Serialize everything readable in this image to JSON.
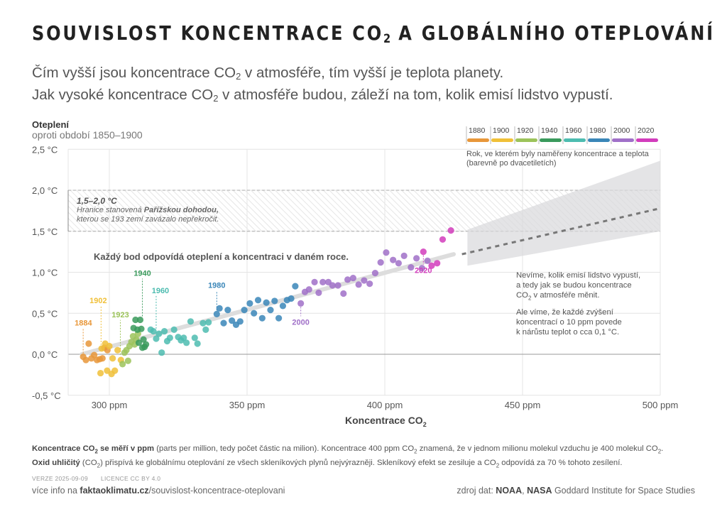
{
  "header": {
    "title_pre": "SOUVISLOST KONCENTRACE CO",
    "title_sub": "2",
    "title_post": " A GLOBÁLNÍHO OTEPLOVÁNÍ",
    "subtitle_line1_pre": "Čím vyšší jsou koncentrace CO",
    "subtitle_line1_sub": "2",
    "subtitle_line1_post": " v atmosféře, tím vyšší je teplota planety.",
    "subtitle_line2_pre": "Jak vysoké koncentrace CO",
    "subtitle_line2_sub": "2",
    "subtitle_line2_post": " v atmosféře budou, záleží na tom, kolik emisí lidstvo vypustí."
  },
  "annotations": {
    "paris_range": "1,5–2,0 °C",
    "paris_line1_pre": "Hranice stanovená ",
    "paris_line1_bold": "Pařížskou dohodou,",
    "paris_line2": "kterou se 193 zemí zavázalo nepřekročit.",
    "point_note": "Každý bod odpovídá oteplení a koncentraci v daném roce.",
    "future_line1": "Nevíme, kolik emisí lidstvo vypustí,",
    "future_line2": "a tedy jak se budou koncentrace",
    "future_line3_pre": "CO",
    "future_line3_sub": "2",
    "future_line3_post": " v atmosféře měnit.",
    "future_line4": "Ale víme, že každé zvýšení",
    "future_line5": "koncentrací o 10 ppm povede",
    "future_line6": "k nárůstu teplot o cca 0,1 °C.",
    "legend_note_line1": "Rok, ve kterém byly naměřeny koncentrace a teplota",
    "legend_note_line2": "(barevně po dvacetiletích)"
  },
  "footer": {
    "note1_bold_pre": "Koncentrace CO",
    "note1_bold_sub": "2",
    "note1_bold_post": " se měří v ppm",
    "note1_rest": " (parts per million, tedy počet částic na milion). Koncentrace 400 ppm CO",
    "note1_sub2": "2",
    "note1_rest2": " znamená, že v jednom milionu molekul vzduchu je 400 molekul CO",
    "note1_sub3": "2",
    "note1_end": ".",
    "note2_bold": "Oxid uhličitý",
    "note2_rest_pre": " (CO",
    "note2_sub": "2",
    "note2_rest": ") přispívá ke globálnímu oteplování ze všech skleníkových plynů nejvýrazněji. Skleníkový efekt se zesiluje a CO",
    "note2_sub2": "2",
    "note2_end": " odpovídá za 70 % tohoto zesílení.",
    "version": "VERZE 2025-09-09",
    "license": "LICENCE CC BY 4.0",
    "more_pre": "více info na ",
    "more_bold": "faktaoklimatu.cz",
    "more_rest": "/souvislost-koncentrace-oteplovani",
    "source_pre": "zdroj dat: ",
    "source_b1": "NOAA",
    "source_mid": ", ",
    "source_b2": "NASA",
    "source_rest": " Goddard Institute for Space Studies"
  },
  "colors": {
    "1880": "#e8973a",
    "1900": "#f0c038",
    "1920": "#9cc35a",
    "1940": "#3a9a5c",
    "1960": "#4dbcb0",
    "1980": "#3a86b8",
    "2000": "#a070c8",
    "2020": "#d23cbc"
  },
  "chart_data": {
    "type": "scatter",
    "title": "Souvislost koncentrace CO2 a globálního oteplování",
    "xlabel_pre": "Koncentrace CO",
    "xlabel_sub": "2",
    "ylabel": "Oteplení",
    "ylabel_sub": "oproti období 1850–1900",
    "xlim": [
      287,
      500
    ],
    "ylim": [
      -0.5,
      2.5
    ],
    "x_ticks": [
      300,
      350,
      400,
      450,
      500
    ],
    "x_tick_labels": [
      "300 ppm",
      "350 ppm",
      "400 ppm",
      "450 ppm",
      "500 ppm"
    ],
    "y_ticks": [
      -0.5,
      0.0,
      0.5,
      1.0,
      1.5,
      2.0,
      2.5
    ],
    "y_tick_labels": [
      "-0,5 °C",
      "0,0 °C",
      "0,5 °C",
      "1,0 °C",
      "1,5 °C",
      "2,0 °C",
      "2,5 °C"
    ],
    "grid": true,
    "legend": {
      "placement": "top-right",
      "entries": [
        "1880",
        "1900",
        "1920",
        "1940",
        "1960",
        "1980",
        "2000",
        "2020"
      ]
    },
    "paris_band": [
      1.5,
      2.0
    ],
    "trend_line": {
      "x": [
        290,
        425
      ],
      "y": [
        0.0,
        1.22
      ]
    },
    "projection_line": {
      "x": [
        428,
        500
      ],
      "y": [
        1.22,
        1.78
      ]
    },
    "projection_band": {
      "x": [
        430,
        500
      ],
      "y_low": [
        1.08,
        1.5
      ],
      "y_high": [
        1.52,
        2.36
      ]
    },
    "labels": [
      {
        "text": "1884",
        "x": 290.5,
        "y": -0.03,
        "decade": "1880"
      },
      {
        "text": "1902",
        "x": 297,
        "y": 0.07,
        "decade": "1900"
      },
      {
        "text": "1923",
        "x": 304,
        "y": -0.05,
        "decade": "1920"
      },
      {
        "text": "1940",
        "x": 312,
        "y": 0.42,
        "decade": "1940"
      },
      {
        "text": "1960",
        "x": 317,
        "y": 0.27,
        "decade": "1960"
      },
      {
        "text": "1980",
        "x": 339,
        "y": 0.49,
        "decade": "1980"
      },
      {
        "text": "2000",
        "x": 369.5,
        "y": 0.62,
        "decade": "2000"
      },
      {
        "text": "2020",
        "x": 414,
        "y": 1.25,
        "decade": "2020"
      }
    ],
    "series": [
      {
        "name": "1880",
        "points": [
          [
            290.5,
            -0.03
          ],
          [
            291.5,
            -0.07
          ],
          [
            292.5,
            0.13
          ],
          [
            293.5,
            -0.05
          ],
          [
            294.5,
            -0.01
          ],
          [
            295.5,
            -0.07
          ],
          [
            296.5,
            -0.06
          ],
          [
            297.5,
            -0.05
          ],
          [
            298.2,
            0.08
          ],
          [
            299.3,
            0.05
          ]
        ]
      },
      {
        "name": "1900",
        "points": [
          [
            296.8,
            -0.23
          ],
          [
            297.2,
            0.07
          ],
          [
            298.5,
            0.13
          ],
          [
            299.2,
            -0.2
          ],
          [
            300,
            0.1
          ],
          [
            300.8,
            -0.24
          ],
          [
            301.2,
            -0.05
          ],
          [
            302,
            -0.2
          ],
          [
            303,
            0.05
          ],
          [
            304.2,
            -0.07
          ]
        ]
      },
      {
        "name": "1920",
        "points": [
          [
            304.8,
            -0.12
          ],
          [
            305.5,
            0.02
          ],
          [
            306.2,
            0.05
          ],
          [
            306.8,
            -0.08
          ],
          [
            307.3,
            0.1
          ],
          [
            308,
            0.15
          ],
          [
            308.6,
            0.22
          ],
          [
            309.2,
            0.12
          ],
          [
            309.8,
            0.18
          ],
          [
            310.4,
            0.25
          ]
        ]
      },
      {
        "name": "1940",
        "points": [
          [
            308.8,
            0.32
          ],
          [
            309.5,
            0.42
          ],
          [
            310.2,
            0.3
          ],
          [
            310.7,
            0.14
          ],
          [
            311.2,
            0.42
          ],
          [
            311.6,
            0.31
          ],
          [
            312,
            0.08
          ],
          [
            312.4,
            0.18
          ],
          [
            312.8,
            0.09
          ],
          [
            313.3,
            0.12
          ]
        ]
      },
      {
        "name": "1960",
        "points": [
          [
            315,
            0.3
          ],
          [
            316,
            0.28
          ],
          [
            317,
            0.19
          ],
          [
            318,
            0.25
          ],
          [
            319,
            0.02
          ],
          [
            320,
            0.28
          ],
          [
            321,
            0.16
          ],
          [
            322,
            0.2
          ],
          [
            323.5,
            0.3
          ],
          [
            325,
            0.21
          ],
          [
            326,
            0.17
          ],
          [
            327,
            0.2
          ],
          [
            328,
            0.14
          ],
          [
            329.5,
            0.4
          ],
          [
            331,
            0.2
          ],
          [
            332,
            0.13
          ],
          [
            334,
            0.38
          ],
          [
            335,
            0.3
          ],
          [
            336,
            0.39
          ]
        ]
      },
      {
        "name": "1980",
        "points": [
          [
            339,
            0.49
          ],
          [
            340,
            0.56
          ],
          [
            341.5,
            0.38
          ],
          [
            343,
            0.54
          ],
          [
            344.5,
            0.41
          ],
          [
            346,
            0.36
          ],
          [
            347.5,
            0.4
          ],
          [
            349,
            0.54
          ],
          [
            351,
            0.62
          ],
          [
            352.5,
            0.5
          ],
          [
            354,
            0.66
          ],
          [
            355.5,
            0.44
          ],
          [
            357,
            0.63
          ],
          [
            358.5,
            0.54
          ],
          [
            360,
            0.65
          ],
          [
            361.5,
            0.44
          ],
          [
            363,
            0.59
          ],
          [
            364.5,
            0.66
          ],
          [
            366,
            0.68
          ],
          [
            367.5,
            0.83
          ]
        ]
      },
      {
        "name": "2000",
        "points": [
          [
            369.5,
            0.62
          ],
          [
            371,
            0.76
          ],
          [
            372.5,
            0.79
          ],
          [
            374.5,
            0.88
          ],
          [
            376,
            0.75
          ],
          [
            377.5,
            0.88
          ],
          [
            379.5,
            0.88
          ],
          [
            381,
            0.84
          ],
          [
            383,
            0.84
          ],
          [
            385,
            0.74
          ],
          [
            386.5,
            0.91
          ],
          [
            388.5,
            0.93
          ],
          [
            390.5,
            0.85
          ],
          [
            392.5,
            0.9
          ],
          [
            394.5,
            0.86
          ],
          [
            396.5,
            0.99
          ],
          [
            398.5,
            1.12
          ],
          [
            400.5,
            1.24
          ],
          [
            403,
            1.15
          ],
          [
            405,
            1.11
          ],
          [
            407,
            1.2
          ],
          [
            409.5,
            1.06
          ],
          [
            411.5,
            1.17
          ],
          [
            413.5,
            1.05
          ],
          [
            415.5,
            1.14
          ]
        ]
      },
      {
        "name": "2020",
        "points": [
          [
            414,
            1.25
          ],
          [
            417,
            1.08
          ],
          [
            419,
            1.11
          ],
          [
            421,
            1.4
          ],
          [
            424,
            1.51
          ]
        ]
      }
    ]
  }
}
